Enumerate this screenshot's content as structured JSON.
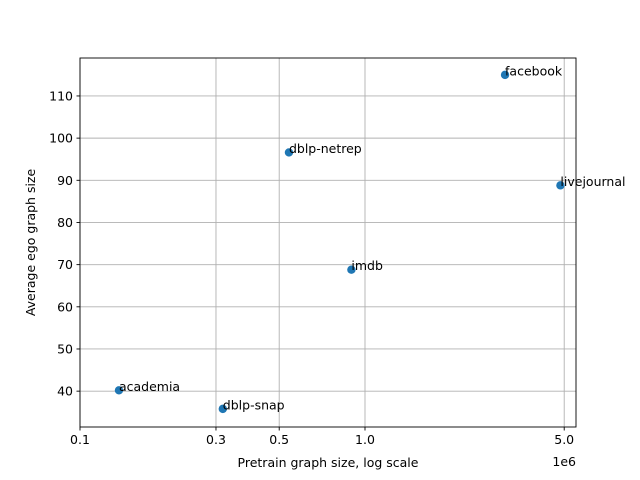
{
  "chart_data": {
    "type": "scatter",
    "title": "",
    "xlabel": "Pretrain graph size, log scale",
    "ylabel": "Average ego graph size",
    "x_scale": "log",
    "x_offset_text": "1e6",
    "xlim": [
      0.1,
      5.5
    ],
    "ylim": [
      31.5,
      119
    ],
    "grid": true,
    "marker_color": "#1f77b4",
    "x_ticks": [
      {
        "value": 0.1,
        "label": "0.1"
      },
      {
        "value": 0.3,
        "label": "0.3"
      },
      {
        "value": 0.5,
        "label": "0.5"
      },
      {
        "value": 1.0,
        "label": "1.0"
      },
      {
        "value": 5.0,
        "label": "5.0"
      }
    ],
    "y_ticks": [
      {
        "value": 40,
        "label": "40"
      },
      {
        "value": 50,
        "label": "50"
      },
      {
        "value": 60,
        "label": "60"
      },
      {
        "value": 70,
        "label": "70"
      },
      {
        "value": 80,
        "label": "80"
      },
      {
        "value": 90,
        "label": "90"
      },
      {
        "value": 100,
        "label": "100"
      },
      {
        "value": 110,
        "label": "110"
      }
    ],
    "points": [
      {
        "label": "academia",
        "x": 0.137,
        "y": 40.2
      },
      {
        "label": "dblp-snap",
        "x": 0.317,
        "y": 35.8
      },
      {
        "label": "dblp-netrep",
        "x": 0.541,
        "y": 96.6
      },
      {
        "label": "imdb",
        "x": 0.896,
        "y": 68.8
      },
      {
        "label": "facebook",
        "x": 3.1,
        "y": 115.0
      },
      {
        "label": "livejournal",
        "x": 4.85,
        "y": 88.8
      }
    ]
  }
}
